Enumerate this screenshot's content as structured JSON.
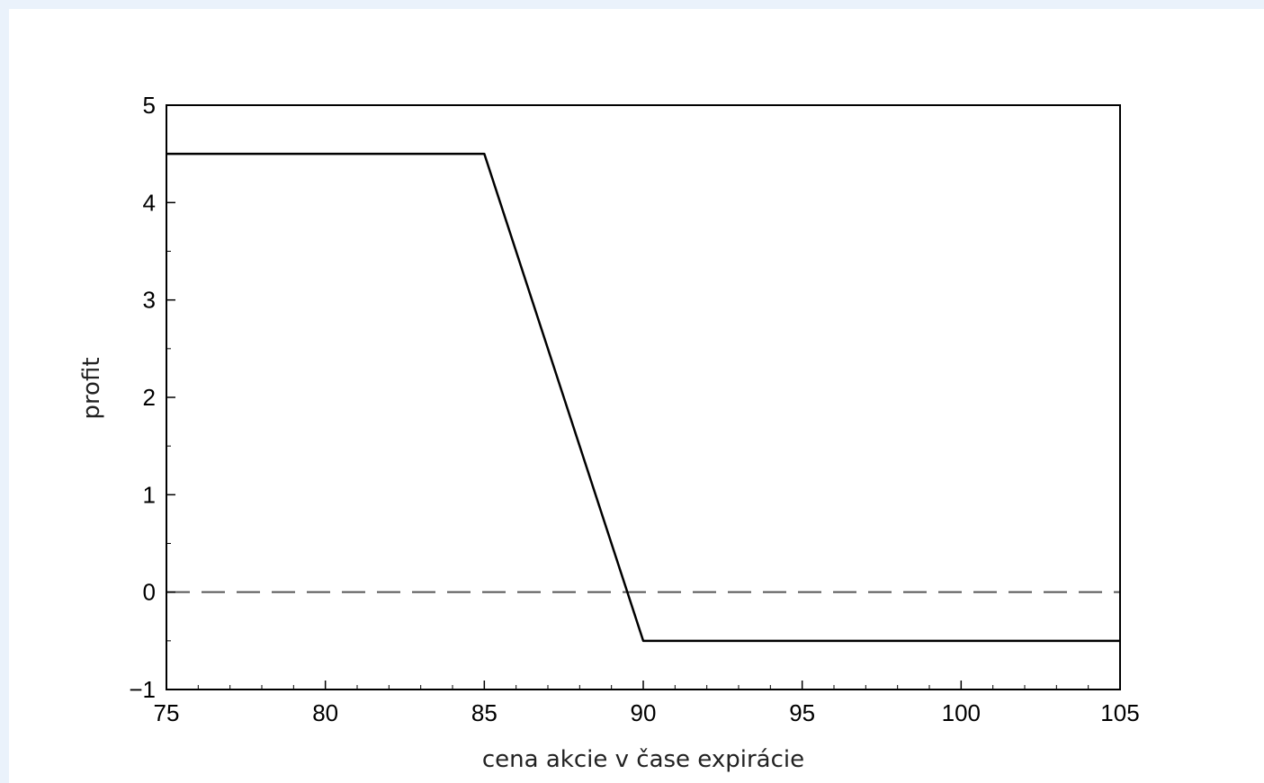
{
  "chart_data": {
    "type": "line",
    "title": "",
    "xlabel": "cena akcie v čase expirácie",
    "ylabel": "profit",
    "xlim": [
      75,
      105
    ],
    "ylim": [
      -1,
      5
    ],
    "x_ticks": [
      75,
      80,
      85,
      90,
      95,
      100,
      105
    ],
    "x_tick_labels": [
      "75",
      "80",
      "85",
      "90",
      "95",
      "100",
      "105"
    ],
    "y_ticks": [
      -1,
      0,
      1,
      2,
      3,
      4,
      5
    ],
    "y_tick_labels": [
      "−1",
      "0",
      "1",
      "2",
      "3",
      "4",
      "5"
    ],
    "x_minor_step": 1,
    "y_minor_step": 0.5,
    "grid": false,
    "series": [
      {
        "style": "solid",
        "color": "#000000",
        "x": [
          75,
          85,
          90,
          105
        ],
        "y": [
          4.5,
          4.5,
          -0.5,
          -0.5
        ]
      }
    ],
    "reference_lines": [
      {
        "orientation": "horizontal",
        "y": 0,
        "style": "dashed",
        "color": "#555555"
      }
    ]
  }
}
